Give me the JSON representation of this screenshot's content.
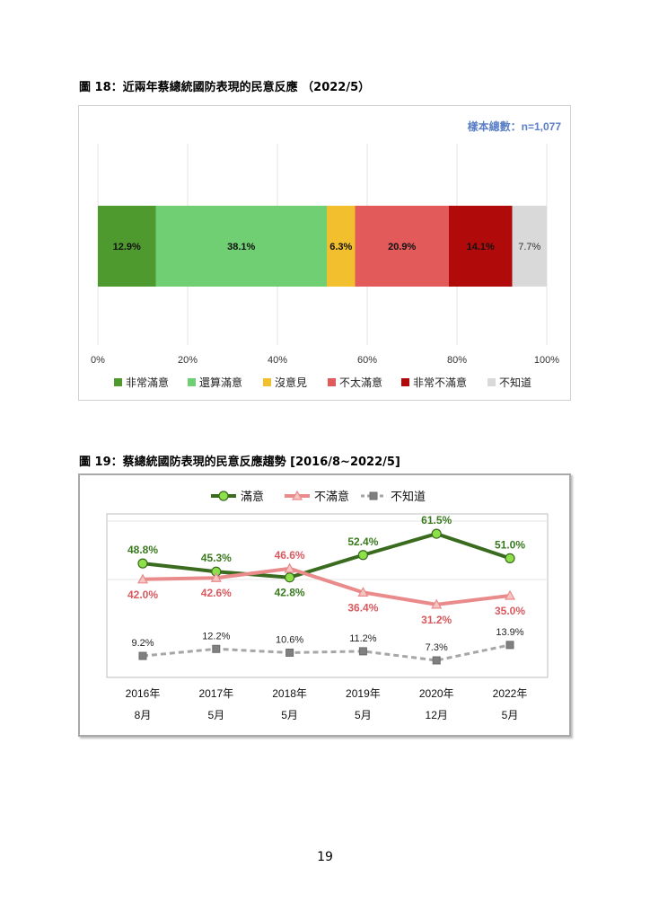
{
  "page": {
    "figure18_title": "圖 18：近兩年蔡總統國防表現的民意反應 （2022/5）",
    "figure19_title": "圖 19：蔡總統國防表現的民意反應趨勢 [2016/8~2022/5]",
    "page_number": "19"
  },
  "chart_data": [
    {
      "type": "bar",
      "orientation": "horizontal",
      "stacked": true,
      "annotation": "樣本總數：n=1,077",
      "categories": [
        "非常滿意",
        "還算滿意",
        "沒意見",
        "不太滿意",
        "非常不滿意",
        "不知道"
      ],
      "values": [
        12.9,
        38.1,
        6.3,
        20.9,
        14.1,
        7.7
      ],
      "value_labels": [
        "12.9%",
        "38.1%",
        "6.3%",
        "20.9%",
        "14.1%",
        "7.7%"
      ],
      "colors": [
        "#4e9a2f",
        "#6fcf72",
        "#f2bf2e",
        "#e35a5a",
        "#b00a0a",
        "#d9d9d9"
      ],
      "xlim": [
        0,
        100
      ],
      "xticks": [
        "0%",
        "20%",
        "40%",
        "60%",
        "80%",
        "100%"
      ],
      "grid": true,
      "legend": "bottom"
    },
    {
      "type": "line",
      "categories": [
        [
          "2016年",
          "8月"
        ],
        [
          "2017年",
          "5月"
        ],
        [
          "2018年",
          "5月"
        ],
        [
          "2019年",
          "5月"
        ],
        [
          "2020年",
          "12月"
        ],
        [
          "2022年",
          "5月"
        ]
      ],
      "series": [
        {
          "name": "滿意",
          "values": [
            48.8,
            45.3,
            42.8,
            52.4,
            61.5,
            51.0
          ],
          "labels": [
            "48.8%",
            "45.3%",
            "42.8%",
            "52.4%",
            "61.5%",
            "51.0%"
          ],
          "color": "#3a6b1f",
          "marker": "circle",
          "marker_color": "#8ee04a",
          "dashed": false,
          "label_position": [
            "above",
            "above",
            "below",
            "above",
            "above",
            "above"
          ]
        },
        {
          "name": "不滿意",
          "values": [
            42.0,
            42.6,
            46.6,
            36.4,
            31.2,
            35.0
          ],
          "labels": [
            "42.0%",
            "42.6%",
            "46.6%",
            "36.4%",
            "31.2%",
            "35.0%"
          ],
          "color": "#e98b8b",
          "marker": "triangle",
          "marker_color": "#f5c5c5",
          "dashed": false,
          "label_position": [
            "below",
            "below",
            "above",
            "below",
            "below",
            "below"
          ]
        },
        {
          "name": "不知道",
          "values": [
            9.2,
            12.2,
            10.6,
            11.2,
            7.3,
            13.9
          ],
          "labels": [
            "9.2%",
            "12.2%",
            "10.6%",
            "11.2%",
            "7.3%",
            "13.9%"
          ],
          "color": "#a6a6a6",
          "marker": "square",
          "marker_color": "#808080",
          "dashed": true,
          "label_position": [
            "above",
            "above",
            "above",
            "above",
            "above",
            "above"
          ]
        }
      ],
      "ylim": [
        0,
        70
      ],
      "legend": "top"
    }
  ]
}
